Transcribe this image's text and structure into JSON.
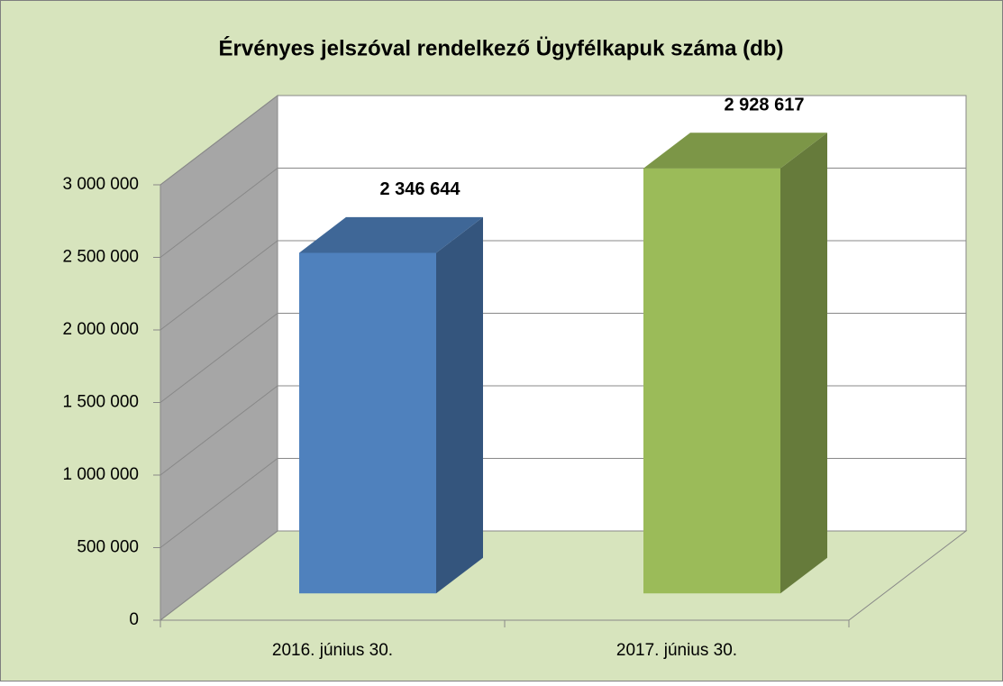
{
  "chart_data": {
    "type": "bar3d",
    "title": "Érvényes jelszóval rendelkező Ügyfélkapuk száma (db)",
    "categories": [
      "2016. június 30.",
      "2017. június 30."
    ],
    "values": [
      2346644,
      2928617
    ],
    "value_labels": [
      "2 346 644",
      "2 928 617"
    ],
    "colors": [
      "#4f81bd",
      "#9bbb59"
    ],
    "ylim": [
      0,
      3000000
    ],
    "yticks": [
      0,
      {
        "value": 500000,
        "label": "500 000"
      },
      {
        "value": 1000000,
        "label": "1 000 000"
      },
      {
        "value": 1500000,
        "label": "1 500 000"
      },
      {
        "value": 2000000,
        "label": "2 000 000"
      },
      {
        "value": 2500000,
        "label": "2 500 000"
      },
      {
        "value": 3000000,
        "label": "3 000 000"
      }
    ],
    "grid": true
  }
}
